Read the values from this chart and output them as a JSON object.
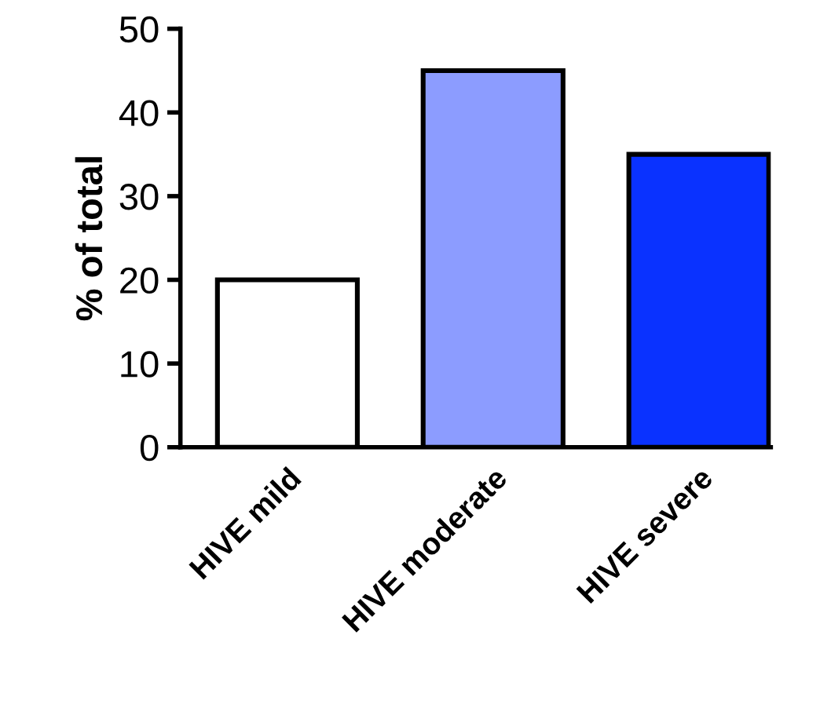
{
  "chart_data": {
    "type": "bar",
    "ylabel": "% of total",
    "categories": [
      "HIVE mild",
      "HIVE moderate",
      "HIVE severe"
    ],
    "values": [
      20,
      45,
      35
    ],
    "colors": [
      "#ffffff",
      "#8c9cff",
      "#0a32ff"
    ],
    "ylim": [
      0,
      50
    ],
    "yticks": [
      0,
      10,
      20,
      30,
      40,
      50
    ],
    "grid": false,
    "legend": false
  }
}
